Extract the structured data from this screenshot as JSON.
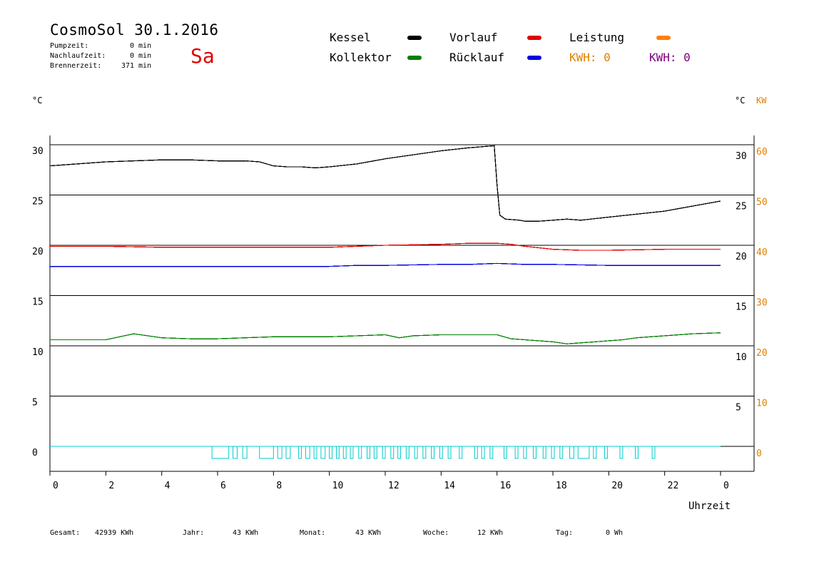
{
  "header": {
    "title": "CosmoSol 30.1.2016",
    "day": "Sa",
    "info": [
      {
        "label": "Pumpzeit:",
        "value": "0",
        "unit": "min"
      },
      {
        "label": "Nachlaufzeit:",
        "value": "0",
        "unit": "min"
      },
      {
        "label": "Brennerzeit:",
        "value": "371",
        "unit": "min"
      }
    ]
  },
  "legend": {
    "kessel": "Kessel",
    "vorlauf": "Vorlauf",
    "leistung": "Leistung",
    "kollektor": "Kollektor",
    "ruecklauf": "Rücklauf",
    "kwh1": "KWH: 0",
    "kwh2": "KWH: 0"
  },
  "colors": {
    "kessel": "#000000",
    "vorlauf": "#e00000",
    "leistung": "#ff8000",
    "kollektor": "#008000",
    "ruecklauf": "#0000e0",
    "kwh1": "#e08000",
    "kwh2": "#800080",
    "pumpe": "#00cccc",
    "power_axis": "#e08000"
  },
  "axes": {
    "left_unit": "°C",
    "right_unit_c": "°C",
    "right_unit_kw": "KW",
    "xlabel": "Uhrzeit"
  },
  "footer": [
    {
      "label": "Gesamt:",
      "value": "42939 KWh"
    },
    {
      "label": "Jahr:",
      "value": "43 KWh"
    },
    {
      "label": "Monat:",
      "value": "43 KWh"
    },
    {
      "label": "Woche:",
      "value": "12 KWh"
    },
    {
      "label": "Tag:",
      "value": "0 Wh"
    }
  ],
  "chart_data": {
    "type": "line",
    "xlabel": "Uhrzeit",
    "xlim": [
      0,
      24
    ],
    "ylim": [
      -2.5,
      31
    ],
    "x_tick_labels": [
      "0",
      "2",
      "4",
      "6",
      "8",
      "10",
      "12",
      "14",
      "16",
      "18",
      "20",
      "22",
      "0"
    ],
    "y_left_ticks": [
      0,
      5,
      10,
      15,
      20,
      25,
      30
    ],
    "y_right_ticks": [
      5,
      10,
      15,
      20,
      25,
      30
    ],
    "y2_ticks": [
      0,
      10,
      20,
      30,
      40,
      50,
      60
    ],
    "series": [
      {
        "name": "Kessel",
        "color": "#000000",
        "x": [
          0,
          1,
          2,
          3,
          4,
          5,
          6,
          7,
          7.5,
          8,
          8.5,
          9,
          9.5,
          10,
          11,
          12,
          13,
          14,
          15,
          15.9,
          16,
          16.1,
          16.3,
          16.8,
          17,
          17.5,
          18,
          18.5,
          19,
          20,
          21,
          22,
          23,
          24
        ],
        "y": [
          27.9,
          28.1,
          28.3,
          28.4,
          28.5,
          28.5,
          28.4,
          28.4,
          28.3,
          27.9,
          27.8,
          27.8,
          27.7,
          27.8,
          28.1,
          28.6,
          29.0,
          29.4,
          29.7,
          29.9,
          26.0,
          23.0,
          22.6,
          22.5,
          22.4,
          22.4,
          22.5,
          22.6,
          22.5,
          22.8,
          23.1,
          23.4,
          23.9,
          24.4
        ]
      },
      {
        "name": "Vorlauf",
        "color": "#e00000",
        "x": [
          0,
          2,
          4,
          6,
          8,
          10,
          12,
          14,
          15,
          16,
          16.5,
          17,
          18,
          19,
          20,
          22,
          24
        ],
        "y": [
          19.9,
          19.9,
          19.8,
          19.8,
          19.8,
          19.8,
          20.0,
          20.1,
          20.2,
          20.2,
          20.1,
          19.9,
          19.6,
          19.5,
          19.5,
          19.6,
          19.6
        ]
      },
      {
        "name": "Rücklauf",
        "color": "#0000e0",
        "x": [
          0,
          2,
          4,
          6,
          8,
          10,
          11,
          12,
          14,
          15,
          16,
          17,
          18,
          20,
          22,
          24
        ],
        "y": [
          17.9,
          17.9,
          17.9,
          17.9,
          17.9,
          17.9,
          18.0,
          18.0,
          18.1,
          18.1,
          18.2,
          18.1,
          18.1,
          18.0,
          18.0,
          18.0
        ]
      },
      {
        "name": "Kollektor",
        "color": "#008000",
        "x": [
          0,
          1,
          2,
          2.5,
          3,
          3.5,
          4,
          5,
          6,
          7,
          8,
          9,
          10,
          11,
          12,
          12.5,
          13,
          14,
          15,
          16,
          16.5,
          17,
          18,
          18.5,
          19,
          19.5,
          20,
          20.5,
          21,
          22,
          23,
          24
        ],
        "y": [
          10.6,
          10.6,
          10.6,
          10.9,
          11.2,
          11.0,
          10.8,
          10.7,
          10.7,
          10.8,
          10.9,
          10.9,
          10.9,
          11.0,
          11.1,
          10.8,
          11.0,
          11.1,
          11.1,
          11.1,
          10.7,
          10.6,
          10.4,
          10.2,
          10.3,
          10.4,
          10.5,
          10.6,
          10.8,
          11.0,
          11.2,
          11.3
        ]
      }
    ],
    "pump_pulses": [
      [
        5.8,
        6.4
      ],
      [
        6.55,
        6.7
      ],
      [
        6.9,
        7.05
      ],
      [
        7.5,
        8.0
      ],
      [
        8.15,
        8.3
      ],
      [
        8.45,
        8.6
      ],
      [
        8.9,
        9.0
      ],
      [
        9.15,
        9.3
      ],
      [
        9.45,
        9.55
      ],
      [
        9.7,
        9.85
      ],
      [
        10.0,
        10.1
      ],
      [
        10.25,
        10.35
      ],
      [
        10.5,
        10.6
      ],
      [
        10.75,
        10.85
      ],
      [
        11.05,
        11.15
      ],
      [
        11.35,
        11.45
      ],
      [
        11.6,
        11.7
      ],
      [
        11.9,
        12.0
      ],
      [
        12.2,
        12.3
      ],
      [
        12.45,
        12.55
      ],
      [
        12.75,
        12.85
      ],
      [
        13.05,
        13.15
      ],
      [
        13.35,
        13.45
      ],
      [
        13.65,
        13.75
      ],
      [
        13.95,
        14.05
      ],
      [
        14.25,
        14.35
      ],
      [
        14.65,
        14.75
      ],
      [
        15.2,
        15.3
      ],
      [
        15.45,
        15.55
      ],
      [
        15.75,
        15.85
      ],
      [
        16.25,
        16.35
      ],
      [
        16.65,
        16.75
      ],
      [
        16.95,
        17.05
      ],
      [
        17.3,
        17.4
      ],
      [
        17.65,
        17.75
      ],
      [
        17.95,
        18.05
      ],
      [
        18.25,
        18.35
      ],
      [
        18.6,
        18.75
      ],
      [
        18.9,
        19.3
      ],
      [
        19.45,
        19.55
      ],
      [
        19.85,
        19.95
      ],
      [
        20.4,
        20.5
      ],
      [
        20.95,
        21.05
      ],
      [
        21.55,
        21.65
      ]
    ],
    "pump_baseline": 0,
    "pump_high": -1.2,
    "grid": true,
    "legend": "top"
  }
}
